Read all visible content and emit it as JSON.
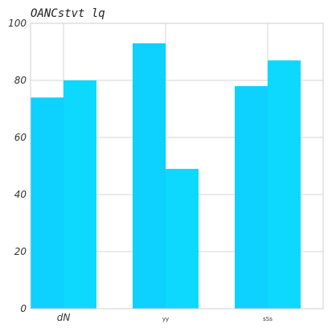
{
  "chart_data": {
    "type": "bar",
    "title": "OANCstvt lq",
    "xlabel": "",
    "ylabel": "",
    "categories": [
      "dN",
      "yy",
      "sSs"
    ],
    "series": [
      {
        "values": [
          74,
          93,
          78
        ]
      },
      {
        "values": [
          80,
          49,
          87
        ]
      }
    ],
    "ylim": [
      0,
      100
    ],
    "yticks": [
      0,
      20,
      40,
      60,
      80,
      100
    ],
    "grid": true,
    "colors": [
      "#00CFFF",
      "#00D7FF"
    ]
  }
}
